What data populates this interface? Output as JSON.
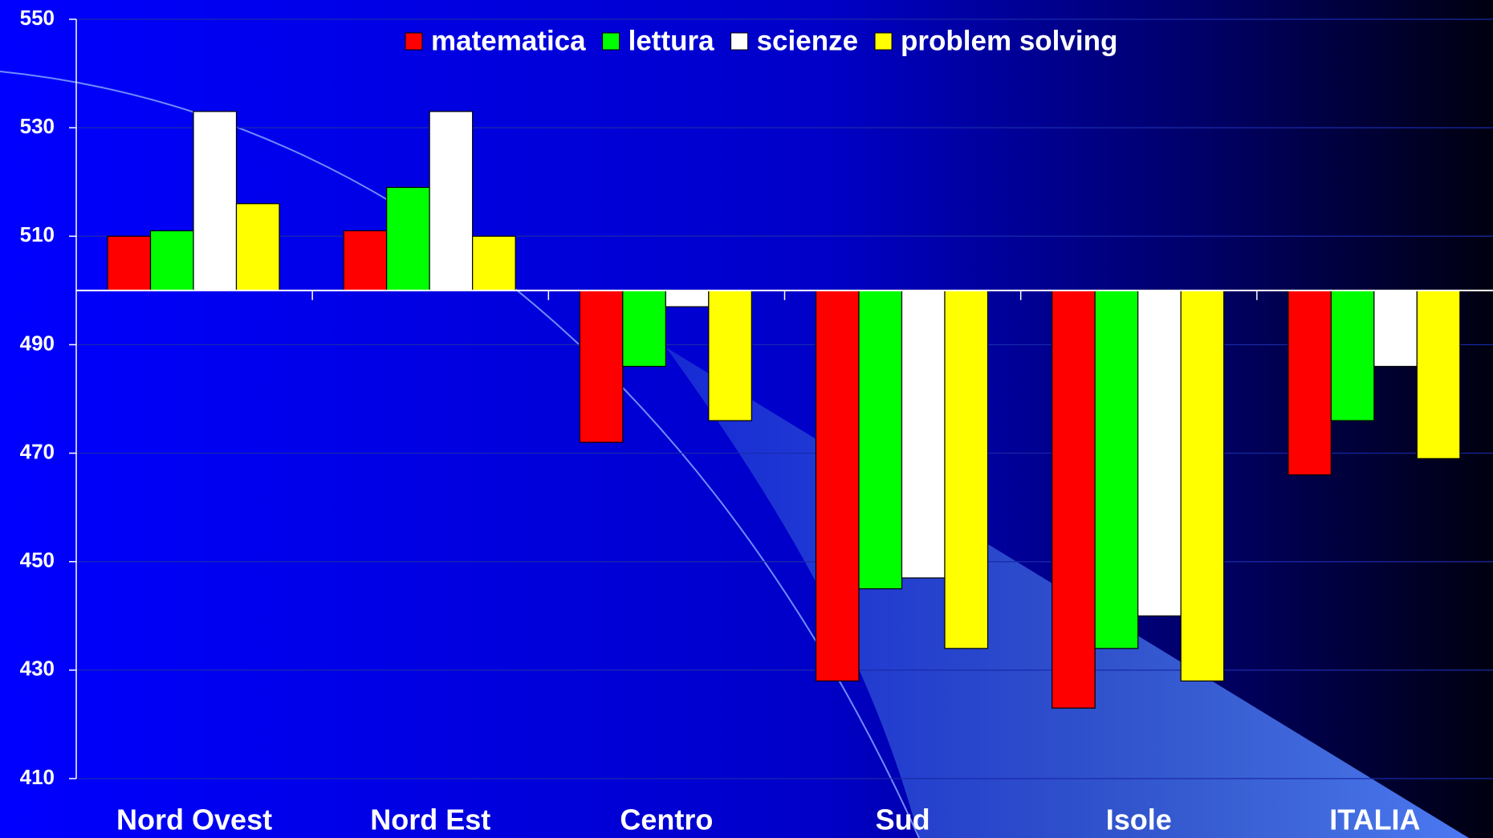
{
  "chart_data": {
    "type": "bar",
    "categories": [
      "Nord Ovest",
      "Nord Est",
      "Centro",
      "Sud",
      "Isole",
      "ITALIA"
    ],
    "series": [
      {
        "name": "matematica",
        "color": "#ff0000",
        "values": [
          510,
          511,
          472,
          428,
          423,
          466
        ]
      },
      {
        "name": "lettura",
        "color": "#00ff00",
        "values": [
          511,
          519,
          486,
          445,
          434,
          476
        ]
      },
      {
        "name": "scienze",
        "color": "#ffffff",
        "values": [
          533,
          533,
          497,
          447,
          440,
          486
        ]
      },
      {
        "name": "problem solving",
        "color": "#ffff00",
        "values": [
          516,
          510,
          476,
          434,
          428,
          469
        ]
      }
    ],
    "ylim": [
      410,
      550
    ],
    "yticks": [
      410,
      430,
      450,
      470,
      490,
      510,
      530,
      550
    ],
    "x_axis_crosses": 500,
    "grid": true,
    "legend": "top"
  }
}
